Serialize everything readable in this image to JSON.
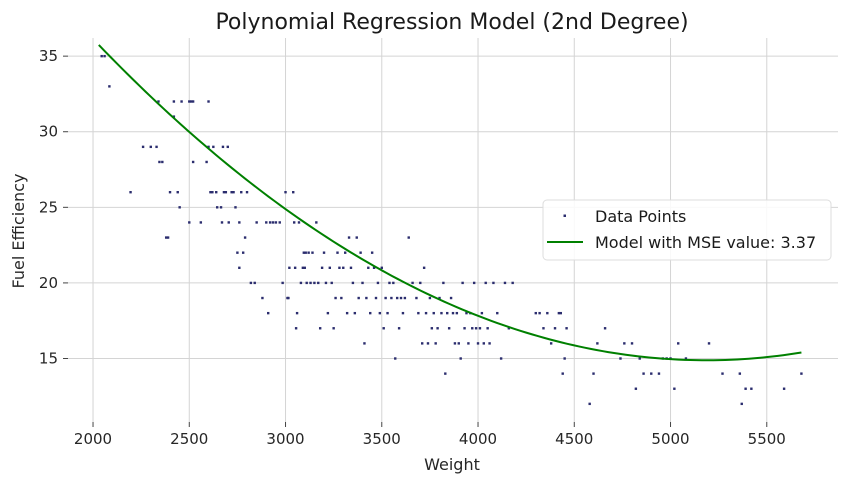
{
  "chart_data": {
    "type": "scatter",
    "title": "Polynomial Regression Model (2nd Degree)",
    "xlabel": "Weight",
    "ylabel": "Fuel Efficiency",
    "xlim": [
      1870,
      5870
    ],
    "ylim": [
      10.8,
      36.2
    ],
    "x_ticks": [
      2000,
      2500,
      3000,
      3500,
      4000,
      4500,
      5000,
      5500
    ],
    "y_ticks": [
      15,
      20,
      25,
      30,
      35
    ],
    "x_tick_labels": [
      "2000",
      "2500",
      "3000",
      "3500",
      "4000",
      "4500",
      "5000",
      "5500"
    ],
    "y_tick_labels": [
      "15",
      "20",
      "25",
      "30",
      "35"
    ],
    "grid": true,
    "legend": {
      "position": "center-right",
      "entries": [
        "Data Points",
        "Model with MSE value: 3.37"
      ]
    },
    "colors": {
      "points": "#2b2d6e",
      "model": "#008000",
      "grid": "#d4d4d4"
    },
    "series": [
      {
        "name": "Data Points",
        "type": "scatter",
        "points": [
          [
            2045,
            35
          ],
          [
            2060,
            35
          ],
          [
            2085,
            33
          ],
          [
            2195,
            26
          ],
          [
            2260,
            29
          ],
          [
            2300,
            29
          ],
          [
            2330,
            29
          ],
          [
            2340,
            32
          ],
          [
            2345,
            28
          ],
          [
            2360,
            28
          ],
          [
            2380,
            23
          ],
          [
            2390,
            23
          ],
          [
            2400,
            26
          ],
          [
            2420,
            32
          ],
          [
            2420,
            31
          ],
          [
            2440,
            26
          ],
          [
            2460,
            32
          ],
          [
            2450,
            25
          ],
          [
            2500,
            32
          ],
          [
            2510,
            32
          ],
          [
            2520,
            32
          ],
          [
            2500,
            24
          ],
          [
            2520,
            28
          ],
          [
            2560,
            24
          ],
          [
            2590,
            28
          ],
          [
            2600,
            29
          ],
          [
            2600,
            32
          ],
          [
            2610,
            26
          ],
          [
            2620,
            26
          ],
          [
            2625,
            29
          ],
          [
            2640,
            26
          ],
          [
            2645,
            25
          ],
          [
            2665,
            25
          ],
          [
            2670,
            24
          ],
          [
            2675,
            29
          ],
          [
            2680,
            26
          ],
          [
            2690,
            26
          ],
          [
            2700,
            29
          ],
          [
            2705,
            24
          ],
          [
            2720,
            26
          ],
          [
            2730,
            26
          ],
          [
            2740,
            25
          ],
          [
            2750,
            22
          ],
          [
            2760,
            21
          ],
          [
            2760,
            24
          ],
          [
            2770,
            26
          ],
          [
            2780,
            22
          ],
          [
            2790,
            23
          ],
          [
            2800,
            26
          ],
          [
            2820,
            20
          ],
          [
            2840,
            20
          ],
          [
            2850,
            24
          ],
          [
            2880,
            19
          ],
          [
            2900,
            24
          ],
          [
            2910,
            18
          ],
          [
            2920,
            24
          ],
          [
            2935,
            24
          ],
          [
            2950,
            24
          ],
          [
            2970,
            24
          ],
          [
            2985,
            20
          ],
          [
            3000,
            26
          ],
          [
            3010,
            19
          ],
          [
            3015,
            19
          ],
          [
            3020,
            21
          ],
          [
            3040,
            26
          ],
          [
            3045,
            24
          ],
          [
            3050,
            21
          ],
          [
            3055,
            17
          ],
          [
            3060,
            18
          ],
          [
            3070,
            24
          ],
          [
            3080,
            20
          ],
          [
            3090,
            21
          ],
          [
            3095,
            22
          ],
          [
            3100,
            21
          ],
          [
            3105,
            22
          ],
          [
            3110,
            20
          ],
          [
            3120,
            22
          ],
          [
            3130,
            20
          ],
          [
            3140,
            22
          ],
          [
            3150,
            20
          ],
          [
            3160,
            24
          ],
          [
            3170,
            20
          ],
          [
            3180,
            17
          ],
          [
            3190,
            21
          ],
          [
            3200,
            22
          ],
          [
            3210,
            20
          ],
          [
            3220,
            18
          ],
          [
            3230,
            21
          ],
          [
            3240,
            20
          ],
          [
            3250,
            17
          ],
          [
            3260,
            19
          ],
          [
            3270,
            22
          ],
          [
            3280,
            21
          ],
          [
            3290,
            19
          ],
          [
            3300,
            21
          ],
          [
            3310,
            22
          ],
          [
            3320,
            18
          ],
          [
            3330,
            23
          ],
          [
            3340,
            21
          ],
          [
            3350,
            20
          ],
          [
            3360,
            18
          ],
          [
            3370,
            23
          ],
          [
            3380,
            19
          ],
          [
            3390,
            22
          ],
          [
            3400,
            20
          ],
          [
            3410,
            16
          ],
          [
            3420,
            19
          ],
          [
            3430,
            21
          ],
          [
            3440,
            18
          ],
          [
            3450,
            22
          ],
          [
            3460,
            21
          ],
          [
            3470,
            19
          ],
          [
            3480,
            20
          ],
          [
            3490,
            18
          ],
          [
            3500,
            21
          ],
          [
            3510,
            17
          ],
          [
            3520,
            19
          ],
          [
            3530,
            18
          ],
          [
            3540,
            20
          ],
          [
            3550,
            19
          ],
          [
            3560,
            20
          ],
          [
            3570,
            15
          ],
          [
            3580,
            19
          ],
          [
            3590,
            17
          ],
          [
            3600,
            19
          ],
          [
            3610,
            18
          ],
          [
            3620,
            19
          ],
          [
            3640,
            23
          ],
          [
            3660,
            20
          ],
          [
            3680,
            19
          ],
          [
            3690,
            18
          ],
          [
            3700,
            20
          ],
          [
            3710,
            16
          ],
          [
            3720,
            21
          ],
          [
            3730,
            18
          ],
          [
            3740,
            16
          ],
          [
            3750,
            19
          ],
          [
            3760,
            17
          ],
          [
            3770,
            18
          ],
          [
            3780,
            16
          ],
          [
            3790,
            17
          ],
          [
            3800,
            19
          ],
          [
            3810,
            18
          ],
          [
            3820,
            20
          ],
          [
            3830,
            14
          ],
          [
            3840,
            18
          ],
          [
            3850,
            17
          ],
          [
            3860,
            19
          ],
          [
            3870,
            18
          ],
          [
            3880,
            16
          ],
          [
            3890,
            18
          ],
          [
            3900,
            16
          ],
          [
            3910,
            15
          ],
          [
            3920,
            20
          ],
          [
            3930,
            17
          ],
          [
            3940,
            18
          ],
          [
            3950,
            16
          ],
          [
            3960,
            18
          ],
          [
            3970,
            17
          ],
          [
            3980,
            20
          ],
          [
            3990,
            17
          ],
          [
            4000,
            16
          ],
          [
            4010,
            17
          ],
          [
            4020,
            18
          ],
          [
            4030,
            16
          ],
          [
            4040,
            20
          ],
          [
            4050,
            17
          ],
          [
            4060,
            16
          ],
          [
            4080,
            20
          ],
          [
            4100,
            18
          ],
          [
            4120,
            15
          ],
          [
            4140,
            20
          ],
          [
            4160,
            17
          ],
          [
            4180,
            20
          ],
          [
            4300,
            18
          ],
          [
            4320,
            18
          ],
          [
            4340,
            17
          ],
          [
            4360,
            18
          ],
          [
            4380,
            16
          ],
          [
            4400,
            17
          ],
          [
            4420,
            18
          ],
          [
            4430,
            18
          ],
          [
            4440,
            14
          ],
          [
            4450,
            15
          ],
          [
            4460,
            17
          ],
          [
            4580,
            12
          ],
          [
            4600,
            14
          ],
          [
            4620,
            16
          ],
          [
            4660,
            17
          ],
          [
            4740,
            15
          ],
          [
            4760,
            16
          ],
          [
            4800,
            16
          ],
          [
            4820,
            13
          ],
          [
            4840,
            15
          ],
          [
            4860,
            14
          ],
          [
            4900,
            14
          ],
          [
            4940,
            14
          ],
          [
            4960,
            15
          ],
          [
            4980,
            15
          ],
          [
            5000,
            15
          ],
          [
            5020,
            13
          ],
          [
            5040,
            16
          ],
          [
            5080,
            15
          ],
          [
            5200,
            16
          ],
          [
            5270,
            14
          ],
          [
            5360,
            14
          ],
          [
            5370,
            12
          ],
          [
            5390,
            13
          ],
          [
            5420,
            13
          ],
          [
            5590,
            13
          ],
          [
            5680,
            14
          ]
        ]
      },
      {
        "name": "Model with MSE value: 3.37",
        "type": "line",
        "coefficients": {
          "a": 2.096e-06,
          "b": -0.021733,
          "c": 71.22
        },
        "x_range": [
          2030,
          5680
        ]
      }
    ]
  }
}
